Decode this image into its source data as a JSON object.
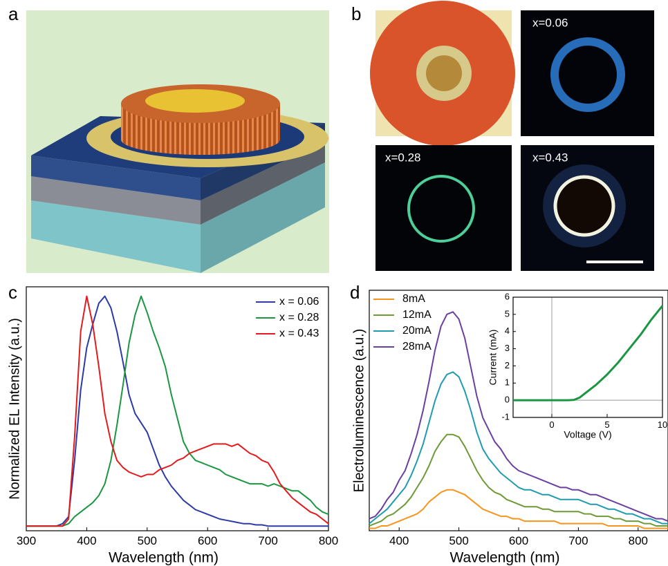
{
  "panel_labels": [
    "a",
    "b",
    "c",
    "d"
  ],
  "photo_labels": [
    "x=0.06",
    "x=0.28",
    "x=0.43"
  ],
  "chart_data": [
    {
      "type": "line",
      "x_label": "Wavelength (nm)",
      "y_label": "Normalized EL Intensity (a.u.)",
      "xlim": [
        300,
        800
      ],
      "ylim": [
        0,
        1.04
      ],
      "xticks": [
        300,
        400,
        500,
        600,
        700,
        800
      ],
      "legend": "top-right",
      "x": [
        300,
        310,
        320,
        330,
        340,
        350,
        360,
        370,
        380,
        390,
        400,
        410,
        420,
        430,
        440,
        450,
        460,
        470,
        480,
        490,
        500,
        510,
        520,
        530,
        540,
        550,
        560,
        570,
        580,
        590,
        600,
        610,
        620,
        630,
        640,
        650,
        660,
        670,
        680,
        690,
        700,
        710,
        720,
        730,
        740,
        750,
        760,
        770,
        780,
        790,
        800
      ],
      "series": [
        {
          "name": "x = 0.06",
          "color": "#2b3aa8",
          "values": [
            0.02,
            0.02,
            0.02,
            0.02,
            0.02,
            0.02,
            0.03,
            0.06,
            0.3,
            0.6,
            0.78,
            0.88,
            0.97,
            1.0,
            0.95,
            0.85,
            0.72,
            0.58,
            0.5,
            0.46,
            0.42,
            0.35,
            0.28,
            0.23,
            0.19,
            0.16,
            0.13,
            0.11,
            0.09,
            0.08,
            0.07,
            0.06,
            0.05,
            0.045,
            0.04,
            0.035,
            0.03,
            0.03,
            0.025,
            0.025,
            0.02,
            0.02,
            0.02,
            0.02,
            0.02,
            0.02,
            0.02,
            0.02,
            0.02,
            0.02,
            0.02
          ]
        },
        {
          "name": "x = 0.28",
          "color": "#1a9641",
          "values": [
            0.02,
            0.02,
            0.02,
            0.02,
            0.02,
            0.02,
            0.02,
            0.03,
            0.06,
            0.08,
            0.1,
            0.12,
            0.15,
            0.2,
            0.3,
            0.45,
            0.62,
            0.8,
            0.92,
            1.0,
            0.93,
            0.85,
            0.78,
            0.7,
            0.58,
            0.48,
            0.38,
            0.33,
            0.3,
            0.29,
            0.28,
            0.27,
            0.26,
            0.24,
            0.23,
            0.22,
            0.21,
            0.2,
            0.2,
            0.2,
            0.19,
            0.2,
            0.19,
            0.18,
            0.17,
            0.17,
            0.15,
            0.13,
            0.1,
            0.08,
            0.07
          ]
        },
        {
          "name": "x = 0.43",
          "color": "#e31a1c",
          "values": [
            0.02,
            0.02,
            0.02,
            0.02,
            0.02,
            0.02,
            0.02,
            0.05,
            0.4,
            0.85,
            1.0,
            0.88,
            0.7,
            0.5,
            0.38,
            0.3,
            0.27,
            0.25,
            0.24,
            0.23,
            0.24,
            0.24,
            0.26,
            0.27,
            0.28,
            0.3,
            0.31,
            0.33,
            0.34,
            0.35,
            0.36,
            0.37,
            0.37,
            0.37,
            0.36,
            0.37,
            0.35,
            0.33,
            0.32,
            0.3,
            0.29,
            0.25,
            0.2,
            0.17,
            0.14,
            0.12,
            0.1,
            0.08,
            0.07,
            0.05,
            0.03
          ]
        }
      ]
    },
    {
      "type": "line",
      "x_label": "Wavelength (nm)",
      "y_label": "Electroluminescence (a.u.)",
      "xlim": [
        350,
        850
      ],
      "ylim": [
        0,
        1
      ],
      "xticks": [
        400,
        500,
        600,
        700,
        800
      ],
      "legend": "top-left",
      "x": [
        350,
        360,
        370,
        380,
        390,
        400,
        410,
        420,
        430,
        440,
        450,
        460,
        470,
        480,
        490,
        500,
        510,
        520,
        530,
        540,
        550,
        560,
        570,
        580,
        590,
        600,
        610,
        620,
        630,
        640,
        650,
        660,
        670,
        680,
        690,
        700,
        710,
        720,
        730,
        740,
        750,
        760,
        770,
        780,
        790,
        800,
        810,
        820,
        830,
        840,
        850
      ],
      "series": [
        {
          "name": "8mA",
          "color": "#f7941d",
          "values": [
            0.01,
            0.01,
            0.02,
            0.02,
            0.03,
            0.04,
            0.05,
            0.06,
            0.07,
            0.09,
            0.12,
            0.14,
            0.16,
            0.17,
            0.17,
            0.16,
            0.15,
            0.13,
            0.11,
            0.09,
            0.08,
            0.07,
            0.06,
            0.06,
            0.05,
            0.05,
            0.04,
            0.04,
            0.04,
            0.04,
            0.04,
            0.04,
            0.03,
            0.03,
            0.03,
            0.03,
            0.03,
            0.03,
            0.03,
            0.03,
            0.02,
            0.02,
            0.02,
            0.02,
            0.02,
            0.02,
            0.01,
            0.01,
            0.01,
            0.01,
            0.01
          ]
        },
        {
          "name": "12mA",
          "color": "#6d9a37",
          "values": [
            0.02,
            0.03,
            0.04,
            0.06,
            0.07,
            0.09,
            0.11,
            0.14,
            0.18,
            0.22,
            0.27,
            0.33,
            0.37,
            0.4,
            0.4,
            0.39,
            0.35,
            0.3,
            0.25,
            0.21,
            0.18,
            0.16,
            0.15,
            0.13,
            0.12,
            0.11,
            0.1,
            0.1,
            0.1,
            0.09,
            0.09,
            0.08,
            0.08,
            0.08,
            0.08,
            0.08,
            0.07,
            0.07,
            0.06,
            0.06,
            0.06,
            0.05,
            0.05,
            0.04,
            0.04,
            0.04,
            0.03,
            0.03,
            0.02,
            0.02,
            0.02
          ]
        },
        {
          "name": "20mA",
          "color": "#1f9bb0",
          "values": [
            0.03,
            0.05,
            0.07,
            0.09,
            0.12,
            0.15,
            0.18,
            0.23,
            0.29,
            0.36,
            0.45,
            0.54,
            0.61,
            0.65,
            0.66,
            0.64,
            0.58,
            0.5,
            0.41,
            0.34,
            0.3,
            0.27,
            0.24,
            0.22,
            0.2,
            0.18,
            0.17,
            0.17,
            0.16,
            0.15,
            0.15,
            0.14,
            0.13,
            0.13,
            0.13,
            0.13,
            0.12,
            0.11,
            0.11,
            0.1,
            0.09,
            0.09,
            0.08,
            0.07,
            0.07,
            0.06,
            0.05,
            0.05,
            0.04,
            0.03,
            0.03
          ]
        },
        {
          "name": "28mA",
          "color": "#6a3fa0",
          "values": [
            0.05,
            0.06,
            0.09,
            0.13,
            0.16,
            0.21,
            0.25,
            0.32,
            0.4,
            0.5,
            0.62,
            0.75,
            0.85,
            0.9,
            0.91,
            0.88,
            0.8,
            0.68,
            0.56,
            0.47,
            0.42,
            0.37,
            0.34,
            0.3,
            0.27,
            0.25,
            0.24,
            0.23,
            0.22,
            0.21,
            0.2,
            0.19,
            0.18,
            0.18,
            0.17,
            0.17,
            0.16,
            0.15,
            0.15,
            0.14,
            0.13,
            0.12,
            0.11,
            0.1,
            0.09,
            0.08,
            0.07,
            0.06,
            0.05,
            0.05,
            0.04
          ]
        }
      ]
    },
    {
      "type": "line",
      "x_label": "Voltage (V)",
      "y_label": "Current (mA)",
      "zero_lines": true,
      "xlim": [
        -3.5,
        10
      ],
      "ylim": [
        -1,
        6
      ],
      "xticks": [
        0,
        5,
        10
      ],
      "yticks": [
        -1,
        0,
        1,
        2,
        3,
        4,
        5,
        6
      ],
      "x": [
        -3.5,
        -2,
        -1,
        0,
        1,
        1.5,
        2,
        2.5,
        3,
        4,
        5,
        6,
        7,
        8,
        9,
        10
      ],
      "series": [
        {
          "color": "#1a9641",
          "values": [
            0,
            0,
            0,
            0,
            0,
            0,
            0.02,
            0.15,
            0.4,
            0.9,
            1.5,
            2.2,
            3.0,
            3.8,
            4.7,
            5.5
          ]
        }
      ]
    }
  ]
}
